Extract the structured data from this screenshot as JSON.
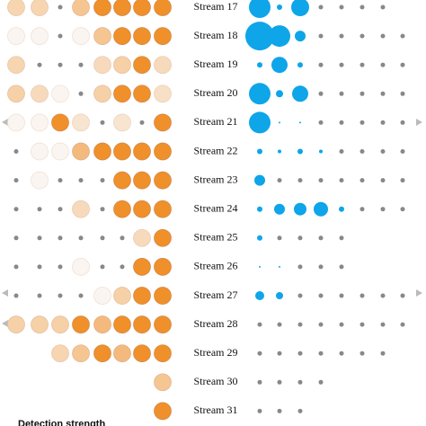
{
  "chart_data": {
    "type": "dot-matrix",
    "categories": [
      "Stream 17",
      "Stream 18",
      "Stream 19",
      "Stream 20",
      "Stream 21",
      "Stream 22",
      "Stream 23",
      "Stream 24",
      "Stream 25",
      "Stream 26",
      "Stream 27",
      "Stream 28",
      "Stream 29",
      "Stream 30",
      "Stream 31"
    ],
    "series": [
      {
        "name": null,
        "color": "#f0902a",
        "values": [
          [
            0.35,
            0.35,
            0,
            0.5,
            1,
            1,
            1,
            1
          ],
          [
            0.05,
            0.05,
            0,
            0.05,
            0.5,
            1,
            1,
            1
          ],
          [
            0.35,
            0,
            0,
            0,
            0.3,
            0.4,
            1,
            0.3
          ],
          [
            0.4,
            0.3,
            0.05,
            0,
            0.4,
            1,
            1,
            0.25
          ],
          [
            0.05,
            0.05,
            1,
            0.2,
            0,
            0.2,
            0,
            1
          ],
          [
            0,
            0.05,
            0.05,
            0.6,
            1,
            1,
            1,
            1
          ],
          [
            0,
            0.05,
            0,
            0,
            0,
            1,
            1,
            1
          ],
          [
            0,
            0,
            0,
            0.3,
            0,
            1,
            1,
            1
          ],
          [
            0,
            0,
            0,
            0,
            0,
            0,
            0.3,
            1
          ],
          [
            0,
            0,
            0,
            0.05,
            0,
            0,
            1,
            1
          ],
          [
            0,
            0,
            0,
            0,
            0.05,
            0.4,
            1,
            1
          ],
          [
            0.4,
            0.4,
            0.4,
            1,
            0.6,
            1,
            1,
            1
          ],
          [
            null,
            null,
            0.35,
            0.5,
            1,
            0.6,
            1,
            1
          ],
          [
            null,
            null,
            null,
            null,
            null,
            null,
            null,
            0.5
          ],
          [
            null,
            null,
            null,
            null,
            null,
            null,
            null,
            1
          ]
        ]
      },
      {
        "name": null,
        "color": "#0ea5e9",
        "values": [
          [
            12,
            3,
            10,
            0,
            0,
            0,
            0,
            null
          ],
          [
            16,
            12,
            6,
            0,
            0,
            0,
            0,
            0
          ],
          [
            3,
            9,
            3,
            0,
            0,
            0,
            0,
            0
          ],
          [
            12,
            4,
            9,
            0,
            0,
            0,
            0,
            0
          ],
          [
            12,
            1,
            1,
            0,
            0,
            0,
            0,
            0
          ],
          [
            3,
            2,
            3,
            2,
            0,
            0,
            0,
            0
          ],
          [
            6,
            0,
            0,
            0,
            0,
            0,
            0,
            0
          ],
          [
            3,
            6,
            7,
            8,
            3,
            0,
            0,
            0
          ],
          [
            3,
            0,
            0,
            0,
            0,
            null,
            null,
            null
          ],
          [
            1,
            1,
            0,
            0,
            0,
            null,
            null,
            null
          ],
          [
            5,
            4,
            0,
            0,
            0,
            0,
            0,
            0
          ],
          [
            0,
            0,
            0,
            0,
            0,
            0,
            0,
            0
          ],
          [
            0,
            0,
            0,
            0,
            0,
            0,
            0,
            null
          ],
          [
            0,
            0,
            0,
            0,
            null,
            null,
            null,
            null
          ],
          [
            0,
            0,
            0,
            null,
            null,
            null,
            null,
            null
          ]
        ]
      }
    ],
    "dot_color": "#888888",
    "legend_title": "Detection strength"
  }
}
